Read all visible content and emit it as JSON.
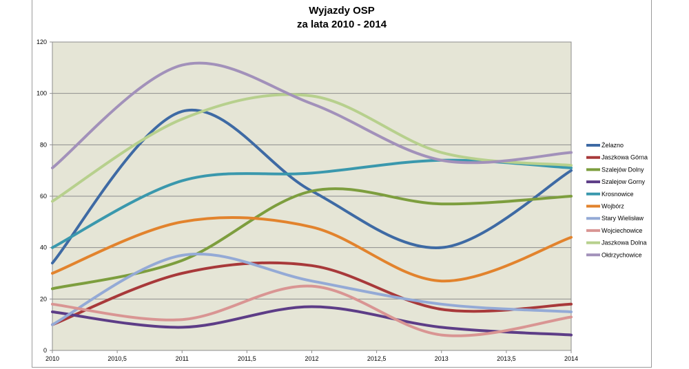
{
  "chart_data": {
    "type": "line",
    "title": "Wyjazdy OSP",
    "subtitle": "za lata 2010 - 2014",
    "xlabel": "",
    "ylabel": "",
    "x": [
      2010,
      2011,
      2012,
      2013,
      2014
    ],
    "xlim": [
      2010,
      2014
    ],
    "ylim": [
      0,
      120
    ],
    "x_ticks": [
      "2010",
      "2010,5",
      "2011",
      "2011,5",
      "2012",
      "2012,5",
      "2013",
      "2013,5",
      "2014"
    ],
    "y_ticks": [
      "0",
      "20",
      "40",
      "60",
      "80",
      "100",
      "120"
    ],
    "grid": true,
    "legend_position": "right",
    "plot_background": "#e5e5d6",
    "series": [
      {
        "name": "Żelazno",
        "color": "#3e6aa4",
        "values": [
          34,
          93,
          62,
          40,
          70
        ]
      },
      {
        "name": "Jaszkowa Górna",
        "color": "#a8393a",
        "values": [
          10,
          30,
          33,
          16,
          18
        ]
      },
      {
        "name": "Szalejów Dolny",
        "color": "#7d9e3e",
        "values": [
          24,
          35,
          62,
          57,
          60
        ]
      },
      {
        "name": "Szalejow Gorny",
        "color": "#5d3d87",
        "values": [
          15,
          9,
          17,
          9,
          6
        ]
      },
      {
        "name": "Krosnowice",
        "color": "#3a98ad",
        "values": [
          40,
          66,
          69,
          74,
          71
        ]
      },
      {
        "name": "Wojbórz",
        "color": "#e2832d",
        "values": [
          30,
          50,
          48,
          27,
          44
        ]
      },
      {
        "name": "Stary Wielisław",
        "color": "#94aad6",
        "values": [
          10,
          37,
          27,
          18,
          15
        ]
      },
      {
        "name": "Wojciechowice",
        "color": "#d99593",
        "values": [
          18,
          12,
          25,
          6,
          13
        ]
      },
      {
        "name": "Jaszkowa Dolna",
        "color": "#b7d08d",
        "values": [
          58,
          90,
          99,
          77,
          72
        ]
      },
      {
        "name": "Ołdrzychowice",
        "color": "#a291ba",
        "values": [
          71,
          111,
          96,
          74,
          77
        ]
      }
    ]
  }
}
